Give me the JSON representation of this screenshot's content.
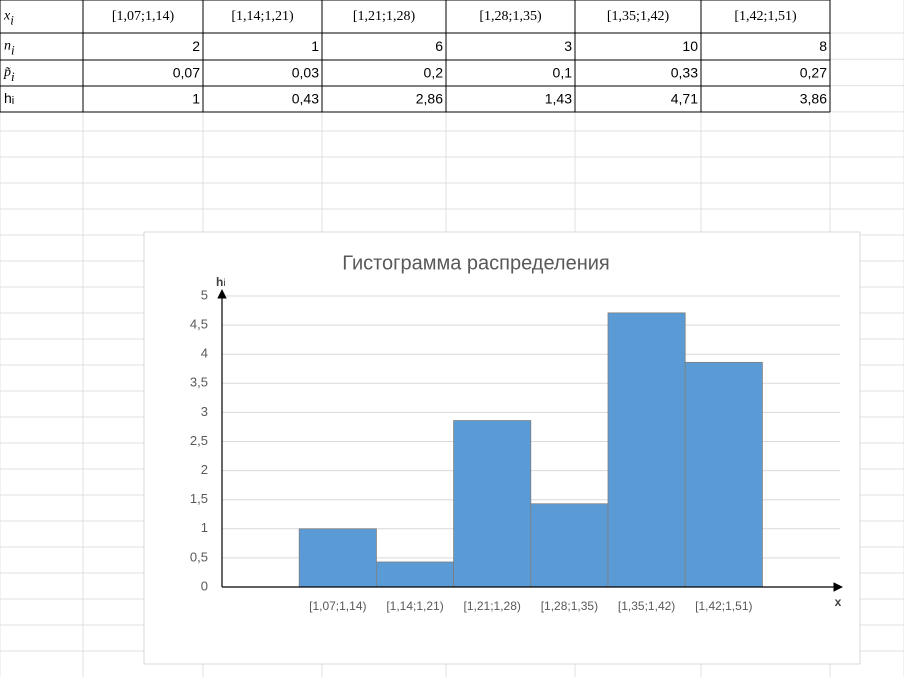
{
  "table": {
    "header": {
      "label": {
        "main": "x",
        "sub": "i"
      },
      "cells": [
        "[1,07;1,14)",
        "[1,14;1,21)",
        "[1,21;1,28)",
        "[1,28;1,35)",
        "[1,35;1,42)",
        "[1,42;1,51)"
      ]
    },
    "rows": [
      {
        "label": {
          "main": "n",
          "sub": "i"
        },
        "cells": [
          "2",
          "1",
          "6",
          "3",
          "10",
          "8"
        ]
      },
      {
        "label": {
          "main": "p̃",
          "sub": "i"
        },
        "cells": [
          "0,07",
          "0,03",
          "0,2",
          "0,1",
          "0,33",
          "0,27"
        ]
      },
      {
        "label": {
          "main": "h",
          "sub": "i"
        },
        "cells": [
          "1",
          "0,43",
          "2,86",
          "1,43",
          "4,71",
          "3,86"
        ]
      }
    ]
  },
  "chart_data": {
    "type": "bar",
    "title": "Гистограмма распределения",
    "y_label": {
      "main": "h",
      "sub": "i"
    },
    "x_label": "x",
    "categories": [
      null,
      "[1,07;1,14)",
      "[1,14;1,21)",
      "[1,21;1,28)",
      "[1,28;1,35)",
      "[1,35;1,42)",
      "[1,42;1,51)"
    ],
    "values": [
      null,
      1,
      0.43,
      2.86,
      1.43,
      4.71,
      3.86
    ],
    "color": "#5b9bd5",
    "ylim": [
      0,
      5
    ],
    "yticks": [
      0,
      {
        "value": 0.5,
        "label": "0,5"
      },
      1,
      {
        "value": 1.5,
        "label": "1,5"
      },
      2,
      {
        "value": 2.5,
        "label": "2,5"
      },
      3,
      {
        "value": 3.5,
        "label": "3,5"
      },
      4,
      {
        "value": 4.5,
        "label": "4,5"
      },
      5
    ],
    "grid": true
  }
}
